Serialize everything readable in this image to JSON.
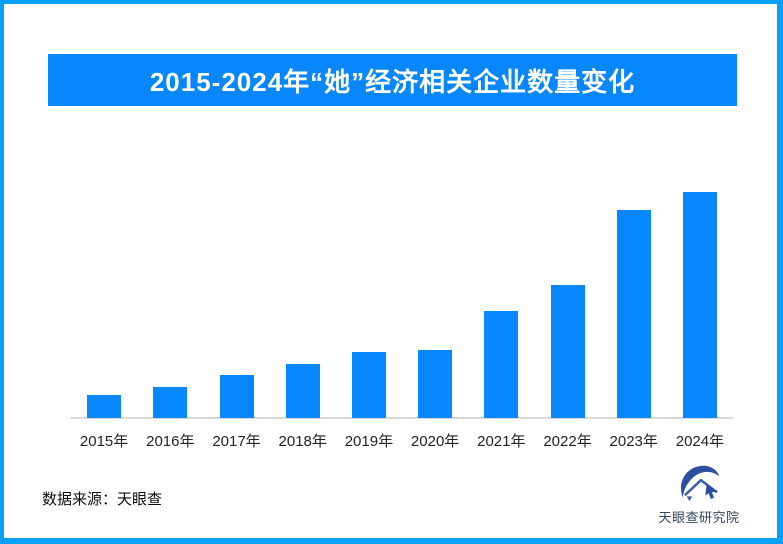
{
  "frame": {
    "border_color": "#09a0f9",
    "background_color": "#ffffff"
  },
  "banner": {
    "title": "2015-2024年“她”经济相关企业数量变化",
    "bg_color": "#0787fb",
    "text_color": "#ffffff"
  },
  "chart_data": {
    "type": "bar",
    "title": "2015-2024年“她”经济相关企业数量变化",
    "categories": [
      "2015年",
      "2016年",
      "2017年",
      "2018年",
      "2019年",
      "2020年",
      "2021年",
      "2022年",
      "2023年",
      "2024年"
    ],
    "values": [
      10.2,
      13.7,
      19.0,
      23.9,
      29.2,
      30.1,
      47.3,
      58.8,
      92.0,
      100.0
    ],
    "values_note": "no numeric axis shown; values estimated from bar heights, normalized to 2024 = 100",
    "xlabel": "",
    "ylabel": "",
    "grid": false,
    "legend": false,
    "bar_color": "#0787fb",
    "axis_line_color": "#d9d9d9",
    "tick_label_color": "#242424"
  },
  "footer": {
    "source_label": "数据来源：天眼查",
    "logo_text": "天眼查研究院"
  }
}
